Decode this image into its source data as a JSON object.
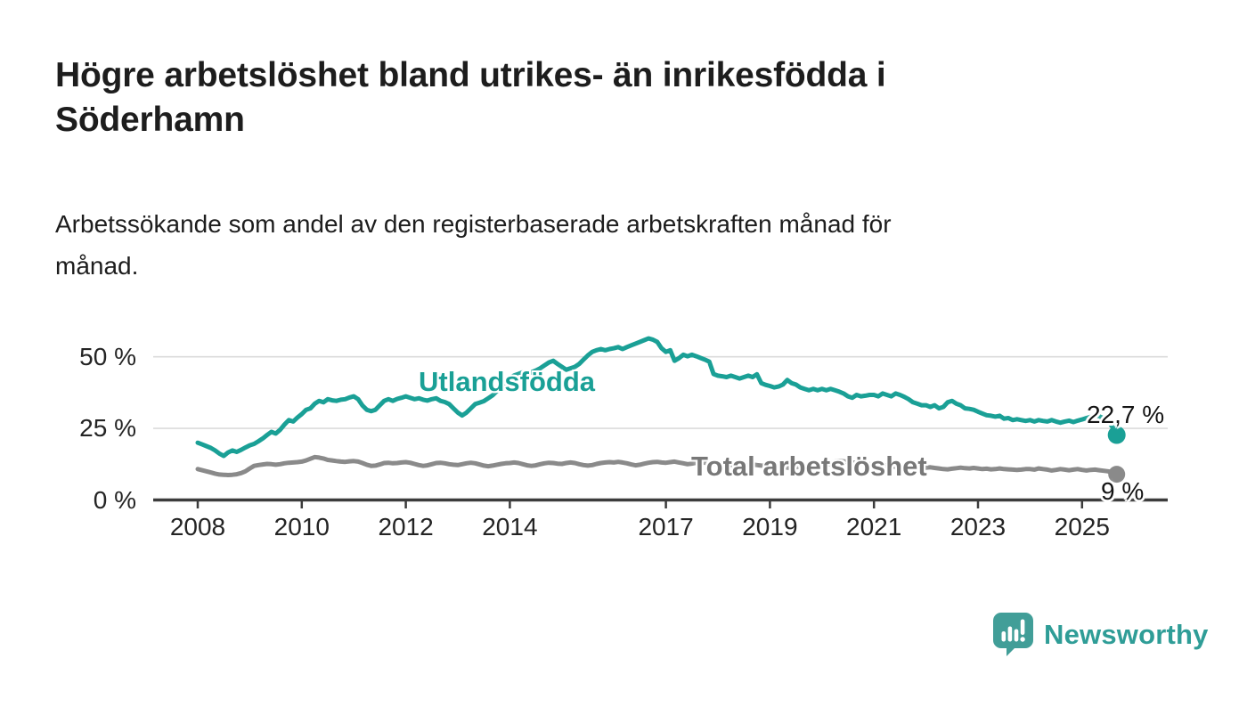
{
  "header": {
    "title_lines": [
      "Högre arbetslöshet bland utrikes- än inrikesfödda i",
      "Söderhamn"
    ],
    "subtitle_lines": [
      "Arbetssökande som andel av den registerbaserade arbetskraften månad för",
      "månad."
    ]
  },
  "chart_data": {
    "type": "line",
    "title": "Högre arbetslöshet bland utrikes- än inrikesfödda i Söderhamn",
    "subtitle": "Arbetssökande som andel av den registerbaserade arbetskraften månad för månad.",
    "x_interval": "monthly",
    "x_range": "Jan 2008 – Sep 2025",
    "grid": "horizontal",
    "ylim": [
      0,
      60
    ],
    "y_ticks": [
      {
        "label": "0 %",
        "value": 0
      },
      {
        "label": "25 %",
        "value": 25
      },
      {
        "label": "50 %",
        "value": 50
      }
    ],
    "x_ticks": [
      2008,
      2010,
      2012,
      2014,
      2017,
      2019,
      2021,
      2023,
      2025
    ],
    "series": [
      {
        "name": "Utlandsfödda",
        "color": "#1aa096",
        "end_label": "22,7 %",
        "end_value": 22.7,
        "start_year": 2008,
        "values": [
          20.0,
          19.4,
          18.8,
          18.2,
          17.3,
          16.2,
          15.4,
          16.6,
          17.3,
          16.8,
          17.5,
          18.3,
          19.1,
          19.6,
          20.5,
          21.5,
          22.7,
          23.8,
          23.2,
          24.5,
          26.3,
          27.9,
          27.4,
          28.8,
          30.0,
          31.5,
          32.0,
          33.6,
          34.6,
          34.1,
          35.2,
          34.8,
          34.6,
          35.0,
          35.2,
          35.8,
          36.2,
          35.2,
          33.0,
          31.5,
          31.0,
          31.5,
          33.1,
          34.6,
          35.2,
          34.6,
          35.3,
          35.7,
          36.2,
          35.7,
          35.2,
          35.5,
          35.0,
          34.7,
          35.2,
          35.5,
          34.6,
          34.2,
          33.5,
          32.0,
          30.5,
          29.5,
          30.5,
          32.0,
          33.5,
          34.0,
          34.5,
          35.5,
          36.5,
          38.0,
          39.5,
          41.0,
          42.5,
          43.5,
          44.0,
          44.6,
          44.0,
          44.6,
          45.2,
          46.0,
          47.0,
          48.0,
          48.6,
          47.5,
          46.5,
          45.5,
          46.0,
          46.5,
          47.5,
          49.0,
          50.5,
          51.7,
          52.3,
          52.7,
          52.3,
          52.7,
          53.0,
          53.4,
          52.7,
          53.4,
          54.0,
          54.6,
          55.2,
          55.8,
          56.4,
          56.0,
          55.2,
          53.0,
          51.7,
          52.3,
          48.6,
          49.5,
          50.7,
          50.2,
          50.7,
          50.2,
          49.6,
          49.0,
          48.3,
          44.0,
          43.4,
          43.2,
          42.9,
          43.4,
          42.9,
          42.4,
          42.9,
          43.4,
          42.9,
          43.9,
          40.8,
          40.2,
          39.8,
          39.3,
          39.6,
          40.3,
          41.9,
          40.8,
          40.3,
          39.3,
          38.8,
          38.3,
          38.8,
          38.3,
          38.8,
          38.3,
          38.8,
          38.3,
          37.8,
          37.2,
          36.2,
          35.7,
          36.7,
          36.2,
          36.4,
          36.7,
          36.7,
          36.2,
          37.2,
          36.7,
          36.2,
          37.2,
          36.7,
          36.0,
          35.2,
          34.1,
          33.6,
          33.1,
          33.1,
          32.5,
          33.1,
          32.0,
          32.5,
          34.1,
          34.6,
          33.6,
          33.1,
          32.0,
          31.8,
          31.5,
          30.8,
          30.2,
          29.6,
          29.4,
          29.1,
          29.4,
          28.4,
          28.6,
          27.9,
          28.2,
          27.9,
          27.6,
          27.9,
          27.4,
          27.9,
          27.6,
          27.4,
          27.9,
          27.4,
          27.0,
          27.4,
          27.7,
          27.2,
          27.7,
          28.1,
          28.6,
          29.0,
          29.6,
          29.2,
          28.5,
          27.5,
          25.5,
          22.7
        ]
      },
      {
        "name": "Total arbetslöshet",
        "color": "#8a8a8a",
        "end_label": "9 %",
        "end_value": 9.0,
        "start_year": 2008,
        "values": [
          10.8,
          10.4,
          10.0,
          9.6,
          9.2,
          8.9,
          8.8,
          8.7,
          8.8,
          9.0,
          9.4,
          10.0,
          11.0,
          11.9,
          12.2,
          12.4,
          12.6,
          12.5,
          12.3,
          12.5,
          12.8,
          13.0,
          13.1,
          13.2,
          13.4,
          13.8,
          14.4,
          15.0,
          14.8,
          14.5,
          14.0,
          13.8,
          13.6,
          13.4,
          13.3,
          13.5,
          13.6,
          13.4,
          12.9,
          12.3,
          11.9,
          12.0,
          12.4,
          12.9,
          13.0,
          12.8,
          12.9,
          13.1,
          13.2,
          13.0,
          12.6,
          12.2,
          11.9,
          12.1,
          12.5,
          12.9,
          13.0,
          12.8,
          12.5,
          12.3,
          12.2,
          12.5,
          12.8,
          13.0,
          12.8,
          12.4,
          12.0,
          11.8,
          12.0,
          12.3,
          12.6,
          12.8,
          12.9,
          13.1,
          12.9,
          12.5,
          12.1,
          11.9,
          12.1,
          12.5,
          12.8,
          13.0,
          12.9,
          12.7,
          12.6,
          12.9,
          13.1,
          12.9,
          12.5,
          12.2,
          12.0,
          12.2,
          12.6,
          12.9,
          13.1,
          13.2,
          13.1,
          13.3,
          13.1,
          12.8,
          12.4,
          12.1,
          12.3,
          12.7,
          13.0,
          13.2,
          13.3,
          13.1,
          13.0,
          13.2,
          13.4,
          13.1,
          12.8,
          12.5,
          12.7,
          13.0,
          13.2,
          13.0,
          12.8,
          12.6,
          12.5,
          12.7,
          12.5,
          12.2,
          11.9,
          11.7,
          11.9,
          12.2,
          12.4,
          12.2,
          12.0,
          11.9,
          11.8,
          12.0,
          11.8,
          11.5,
          11.3,
          11.2,
          11.4,
          11.7,
          11.9,
          11.8,
          11.7,
          11.8,
          12.0,
          12.2,
          12.8,
          13.4,
          13.6,
          13.5,
          13.3,
          13.1,
          12.9,
          12.7,
          12.6,
          12.5,
          12.4,
          12.5,
          12.3,
          12.0,
          11.8,
          11.6,
          11.8,
          12.0,
          11.9,
          11.7,
          11.5,
          11.4,
          11.3,
          11.4,
          11.2,
          11.0,
          10.8,
          10.7,
          10.9,
          11.1,
          11.3,
          11.1,
          11.0,
          11.2,
          11.0,
          10.8,
          10.9,
          10.7,
          10.8,
          11.0,
          10.8,
          10.7,
          10.6,
          10.5,
          10.6,
          10.8,
          10.8,
          10.6,
          11.0,
          10.8,
          10.6,
          10.3,
          10.5,
          10.8,
          10.6,
          10.4,
          10.6,
          10.8,
          10.5,
          10.3,
          10.5,
          10.6,
          10.4,
          10.2,
          10.0,
          9.6,
          9.0
        ]
      }
    ],
    "colors": {
      "gridline": "#dbdbdb",
      "axis": "#3c3c3c",
      "tick_label": "#242424"
    }
  },
  "footer": {
    "brand": "Newsworthy",
    "brand_color": "#2f9d97",
    "icon_color": "#419e98"
  }
}
